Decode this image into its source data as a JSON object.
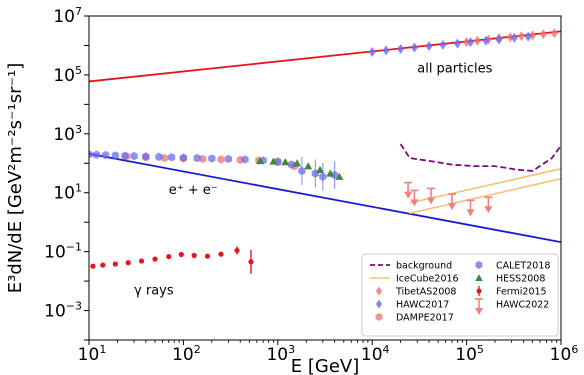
{
  "chart_data": {
    "type": "scatter",
    "xlabel": "E [GeV]",
    "ylabel": "E³dN/dE [GeV²m⁻²s⁻¹sr⁻¹]",
    "xscale": "log",
    "yscale": "log",
    "xlim": [
      10,
      1000000
    ],
    "ylim": [
      0.0001,
      10000000
    ],
    "x_ticks": [
      {
        "base": "10",
        "exp": "1",
        "value": 10
      },
      {
        "base": "10",
        "exp": "2",
        "value": 100
      },
      {
        "base": "10",
        "exp": "3",
        "value": 1000
      },
      {
        "base": "10",
        "exp": "4",
        "value": 10000
      },
      {
        "base": "10",
        "exp": "5",
        "value": 100000
      },
      {
        "base": "10",
        "exp": "6",
        "value": 1000000
      }
    ],
    "y_ticks": [
      {
        "base": "10",
        "exp": "−3",
        "value": 0.001
      },
      {
        "base": "10",
        "exp": "−1",
        "value": 0.1
      },
      {
        "base": "10",
        "exp": "1",
        "value": 10
      },
      {
        "base": "10",
        "exp": "3",
        "value": 1000
      },
      {
        "base": "10",
        "exp": "5",
        "value": 100000
      },
      {
        "base": "10",
        "exp": "7",
        "value": 10000000
      }
    ],
    "annotations": [
      {
        "text": "all particles",
        "x": 30000,
        "y": 120000
      },
      {
        "text": "e⁺ + e⁻",
        "x": 70,
        "y": 9
      },
      {
        "text": "γ rays",
        "x": 30,
        "y": 0.0035
      }
    ],
    "legend_position": "bottom-right",
    "series": [
      {
        "name": "background",
        "style": "dashed-line",
        "color": "#7b0a80",
        "x": [
          20000,
          25000,
          40000,
          70000,
          120000,
          200000,
          350000,
          500000,
          800000,
          1000000
        ],
        "y": [
          450,
          150,
          120,
          90,
          80,
          80,
          60,
          55,
          150,
          400
        ]
      },
      {
        "name": "IceCube2016",
        "style": "band-lines",
        "color": "#f5c27a",
        "lines": [
          {
            "x": [
              25000,
              1000000
            ],
            "y": [
              4.5,
              65
            ]
          },
          {
            "x": [
              25000,
              1000000
            ],
            "y": [
              2,
              30
            ]
          }
        ]
      },
      {
        "name": "TibetAS2008",
        "style": "diamond",
        "color": "#f06f6f",
        "x": [
          100000,
          130000,
          170000,
          220000,
          290000,
          380000,
          500000,
          650000,
          850000
        ],
        "y": [
          1300000,
          1450000,
          1600000,
          1750000,
          1900000,
          2050000,
          2200000,
          2400000,
          2600000
        ]
      },
      {
        "name": "HAWC2017",
        "style": "diamond",
        "color": "#6a6af0",
        "x": [
          10000,
          14000,
          20000,
          28000,
          40000,
          56000,
          80000,
          110000,
          160000,
          220000,
          320000,
          450000
        ],
        "y": [
          600000,
          680000,
          760000,
          850000,
          950000,
          1050000,
          1150000,
          1300000,
          1450000,
          1600000,
          1800000,
          2000000
        ]
      },
      {
        "name": "DAMPE2017",
        "style": "hexagon",
        "color": "#f06f6f",
        "x": [
          25,
          40,
          63,
          100,
          160,
          250,
          400,
          630,
          1000,
          1500
        ],
        "y": [
          170,
          160,
          150,
          145,
          140,
          135,
          130,
          125,
          115,
          80
        ]
      },
      {
        "name": "CALET2018",
        "style": "hexagon",
        "color": "#6a6af0",
        "x": [
          10,
          12,
          15,
          19,
          24,
          30,
          40,
          55,
          75,
          100,
          140,
          200,
          300,
          450,
          700,
          1000,
          1400,
          1800,
          2500,
          3000,
          4000
        ],
        "y": [
          200,
          195,
          190,
          185,
          180,
          175,
          170,
          165,
          160,
          155,
          150,
          145,
          140,
          135,
          125,
          110,
          90,
          55,
          45,
          35,
          40
        ]
      },
      {
        "name": "HESS2008",
        "style": "triangle",
        "color": "#3b8a3b",
        "x": [
          650,
          900,
          1200,
          1600,
          2100,
          2800,
          3600,
          4500
        ],
        "y": [
          120,
          115,
          110,
          100,
          80,
          60,
          45,
          35
        ]
      },
      {
        "name": "Fermi2015",
        "style": "dot-errorbar",
        "color": "#e8141b",
        "x": [
          11,
          14,
          19,
          26,
          36,
          50,
          70,
          95,
          130,
          180,
          250,
          370,
          520
        ],
        "y": [
          0.032,
          0.035,
          0.038,
          0.042,
          0.048,
          0.056,
          0.068,
          0.08,
          0.074,
          0.07,
          0.082,
          0.11,
          0.045
        ]
      },
      {
        "name": "HAWC2022",
        "style": "upper-limit",
        "color": "#f08080",
        "x": [
          24000,
          28000,
          42000,
          70000,
          110000,
          170000
        ],
        "y": [
          22,
          12,
          14,
          9,
          5.5,
          7
        ]
      }
    ],
    "lines": [
      {
        "name": "all particles fit",
        "color": "#e8141b",
        "x": [
          10,
          1000000
        ],
        "y": [
          60000,
          3000000
        ]
      },
      {
        "name": "e+e- fit",
        "color": "#1a1ad0",
        "x": [
          10,
          1000000
        ],
        "y": [
          210,
          0.21
        ]
      }
    ]
  }
}
